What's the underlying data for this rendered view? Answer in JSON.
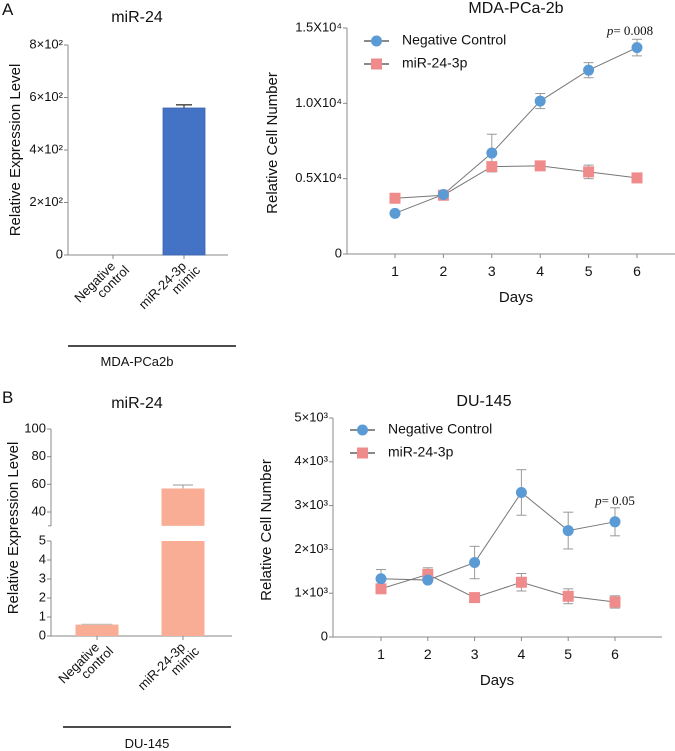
{
  "panels": [
    {
      "label": "A"
    },
    {
      "label": "B"
    }
  ],
  "chart_data": [
    {
      "id": "A-left",
      "type": "bar",
      "title": "miR-24",
      "ylabel": "Relative Expression Level",
      "xlabel": "",
      "group_label": "MDA-PCa2b",
      "categories": [
        [
          "Negative",
          "control"
        ],
        [
          "miR-24-3p",
          "mimic"
        ]
      ],
      "values": [
        0,
        560
      ],
      "errors": [
        0,
        12
      ],
      "ylim": [
        0,
        800
      ],
      "yticks": [
        0,
        200,
        400,
        600,
        800
      ],
      "ytick_labels": [
        "0",
        "2×10²",
        "4×10²",
        "6×10²",
        "8×10²"
      ],
      "color": "#4472c4"
    },
    {
      "id": "A-right",
      "type": "line",
      "title": "MDA-PCa-2b",
      "xlabel": "Days",
      "ylabel": "Relative Cell Number",
      "x": [
        1,
        2,
        3,
        4,
        5,
        6
      ],
      "xlim": [
        0,
        7
      ],
      "ylim": [
        0,
        15000
      ],
      "yticks": [
        0,
        5000,
        10000,
        15000
      ],
      "ytick_labels": [
        "0",
        "0.5X10⁴",
        "1.0X10⁴",
        "1.5X10⁴"
      ],
      "legend_position": "top-left",
      "annotation": {
        "text_p": "p",
        "text_rest": "= 0.008",
        "x": 6
      },
      "series": [
        {
          "name": "Negative Control",
          "marker": "circle",
          "color": "#5b9bd5",
          "values": [
            2700,
            3950,
            6700,
            10150,
            12200,
            13700
          ],
          "errors": [
            0,
            0,
            1250,
            500,
            500,
            550
          ]
        },
        {
          "name": "miR-24-3p",
          "marker": "square",
          "color": "#f08b8b",
          "values": [
            3700,
            3900,
            5800,
            5850,
            5450,
            5050
          ],
          "errors": [
            0,
            0,
            300,
            0,
            450,
            0
          ]
        }
      ]
    },
    {
      "id": "B-left",
      "type": "bar",
      "title": "miR-24",
      "ylabel": "Relative Expression Level",
      "xlabel": "",
      "group_label": "DU-145",
      "categories": [
        [
          "Negative",
          "control"
        ],
        [
          "miR-24-3p",
          "mimic"
        ]
      ],
      "values": [
        0.6,
        57
      ],
      "errors": [
        0.02,
        2.5
      ],
      "axis_break": {
        "lower": [
          0,
          5
        ],
        "upper": [
          30,
          100
        ]
      },
      "yticks_lower": [
        0,
        1,
        2,
        3,
        4,
        5
      ],
      "yticks_upper": [
        40,
        60,
        80,
        100
      ],
      "color": "#f8ad94"
    },
    {
      "id": "B-right",
      "type": "line",
      "title": "DU-145",
      "xlabel": "Days",
      "ylabel": "Relative Cell Number",
      "x": [
        1,
        2,
        3,
        4,
        5,
        6
      ],
      "xlim": [
        0,
        7
      ],
      "ylim": [
        0,
        5000
      ],
      "yticks": [
        0,
        1000,
        2000,
        3000,
        4000,
        5000
      ],
      "ytick_labels": [
        "0",
        "1×10³",
        "2×10³",
        "3×10³",
        "4×10³",
        "5×10³"
      ],
      "legend_position": "top-left",
      "annotation": {
        "text_p": "p",
        "text_rest": "= 0.05",
        "x": 6
      },
      "series": [
        {
          "name": "Negative Control",
          "marker": "circle",
          "color": "#5b9bd5",
          "values": [
            1330,
            1300,
            1700,
            3300,
            2430,
            2630
          ],
          "errors": [
            210,
            0,
            370,
            520,
            420,
            320
          ]
        },
        {
          "name": "miR-24-3p",
          "marker": "square",
          "color": "#f08b8b",
          "values": [
            1100,
            1430,
            900,
            1250,
            930,
            800
          ],
          "errors": [
            0,
            150,
            0,
            200,
            170,
            140
          ]
        }
      ]
    }
  ]
}
